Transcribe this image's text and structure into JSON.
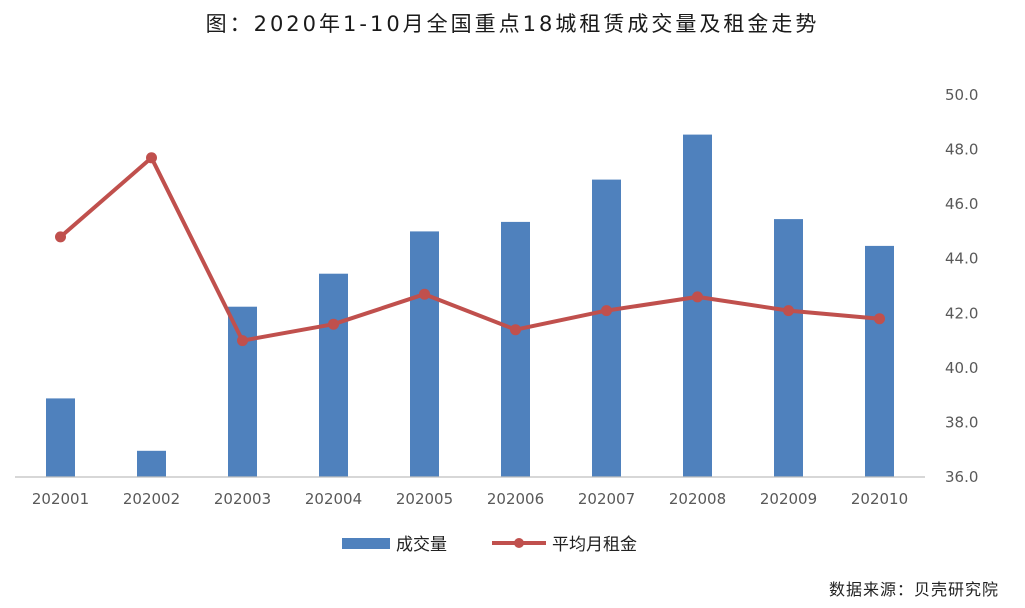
{
  "title": "图：2020年1-10月全国重点18城租赁成交量及租金走势",
  "source": "数据来源：贝壳研究院",
  "colors": {
    "bar": "#4f81bd",
    "line": "#c0504d",
    "axis": "#bfbfbf"
  },
  "chart_data": {
    "type": "bar+line",
    "title": "图：2020年1-10月全国重点18城租赁成交量及租金走势",
    "categories": [
      "202001",
      "202002",
      "202003",
      "202004",
      "202005",
      "202006",
      "202007",
      "202008",
      "202009",
      "202010"
    ],
    "series": [
      {
        "name": "成交量",
        "type": "bar",
        "values": [
          null,
          null,
          null,
          null,
          null,
          null,
          null,
          null,
          null,
          null
        ],
        "relative_heights": [
          0.288,
          0.096,
          0.624,
          0.745,
          0.9,
          0.935,
          1.09,
          1.255,
          0.945,
          0.847
        ]
      },
      {
        "name": "平均月租金",
        "type": "line",
        "axis": "right",
        "values": [
          44.8,
          47.7,
          41.0,
          41.6,
          42.7,
          41.4,
          42.1,
          42.6,
          42.1,
          41.8
        ]
      }
    ],
    "right_axis": {
      "ticks": [
        "36.0",
        "38.0",
        "40.0",
        "42.0",
        "44.0",
        "46.0",
        "48.0",
        "50.0"
      ],
      "ylim": [
        36,
        50
      ]
    },
    "legend": {
      "position": "bottom",
      "entries": [
        "成交量",
        "平均月租金"
      ]
    },
    "grid": false
  }
}
